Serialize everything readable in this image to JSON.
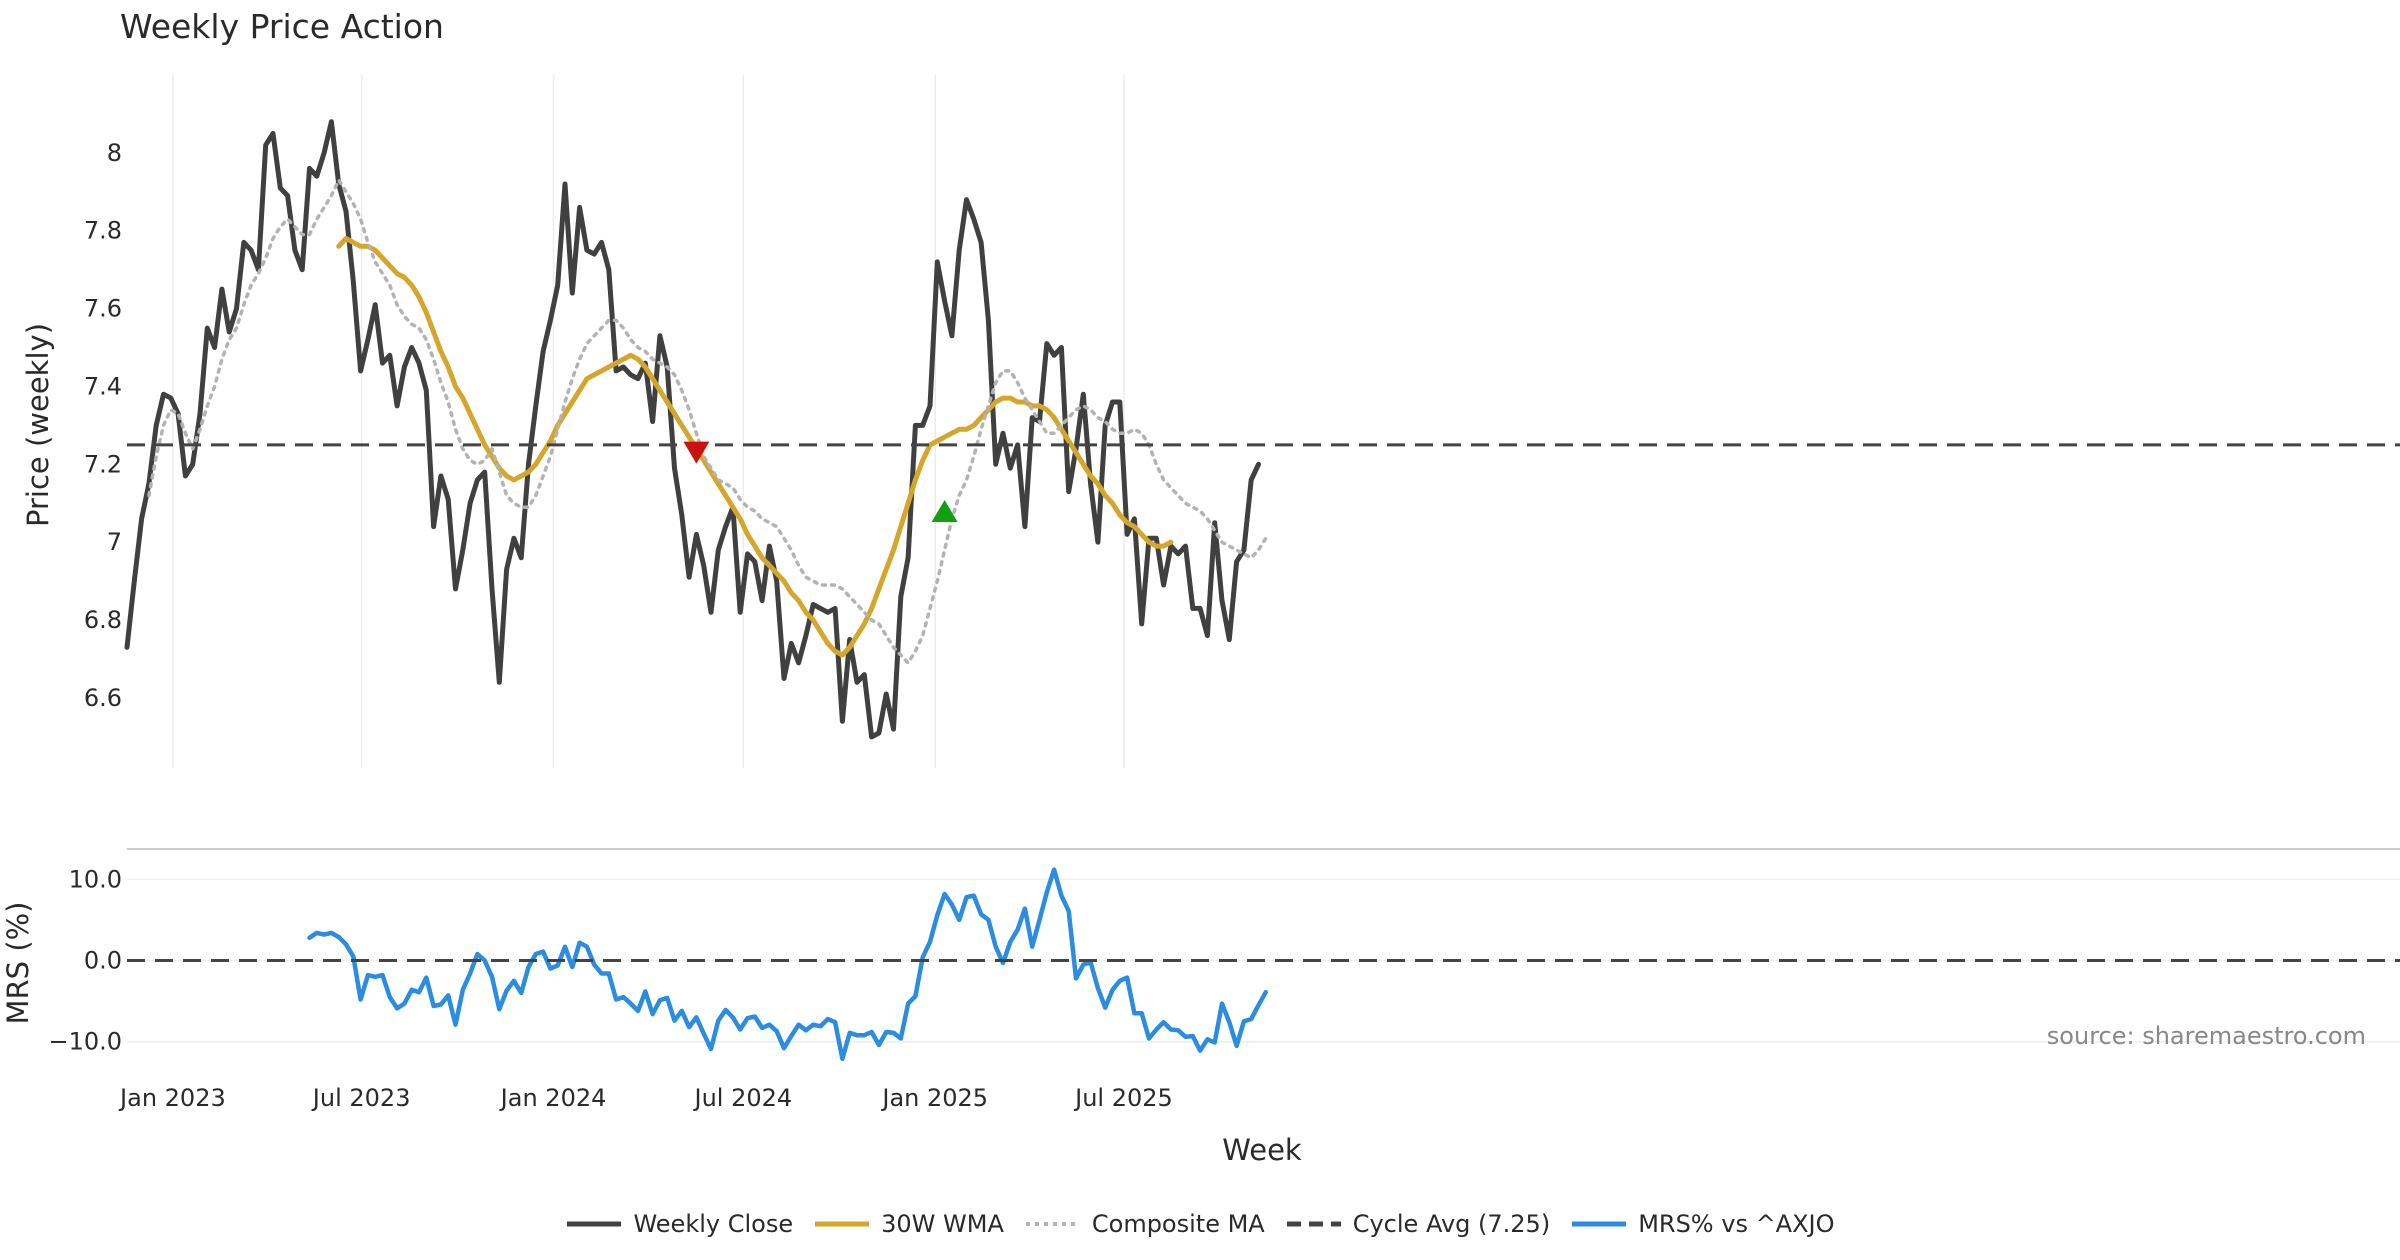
{
  "chart_data": [
    {
      "type": "line",
      "title": "Weekly Price Action",
      "xlabel": "",
      "ylabel": "Price (weekly)",
      "ylim": [
        6.42,
        8.2
      ],
      "yticks": [
        6.6,
        6.8,
        7,
        7.2,
        7.4,
        7.6,
        7.8,
        8
      ],
      "ytick_labels": [
        "6.6",
        "6.8",
        "7",
        "7.2",
        "7.4",
        "7.6",
        "7.8",
        "8"
      ],
      "grid": "vertical",
      "x_start": "2022-11-18",
      "x_interval": "weekly",
      "series": [
        {
          "name": "Weekly Close",
          "color": "#404040",
          "style": "solid",
          "start_index": 0,
          "values": [
            6.73,
            6.9,
            7.06,
            7.15,
            7.3,
            7.38,
            7.37,
            7.33,
            7.17,
            7.2,
            7.33,
            7.55,
            7.5,
            7.65,
            7.54,
            7.6,
            7.77,
            7.75,
            7.7,
            8.02,
            8.05,
            7.91,
            7.89,
            7.75,
            7.7,
            7.96,
            7.94,
            8.0,
            8.08,
            7.92,
            7.85,
            7.67,
            7.44,
            7.52,
            7.61,
            7.46,
            7.48,
            7.35,
            7.45,
            7.5,
            7.46,
            7.39,
            7.04,
            7.17,
            7.11,
            6.88,
            6.98,
            7.1,
            7.16,
            7.18,
            6.88,
            6.64,
            6.93,
            7.01,
            6.96,
            7.2,
            7.35,
            7.49,
            7.57,
            7.66,
            7.92,
            7.64,
            7.86,
            7.75,
            7.74,
            7.77,
            7.7,
            7.44,
            7.45,
            7.43,
            7.42,
            7.46,
            7.31,
            7.53,
            7.45,
            7.19,
            7.07,
            6.91,
            7.02,
            6.94,
            6.82,
            6.98,
            7.04,
            7.09,
            6.82,
            6.97,
            6.95,
            6.85,
            6.99,
            6.9,
            6.65,
            6.74,
            6.69,
            6.76,
            6.84,
            6.83,
            6.82,
            6.83,
            6.54,
            6.75,
            6.64,
            6.66,
            6.5,
            6.51,
            6.61,
            6.52,
            6.86,
            6.96,
            7.3,
            7.3,
            7.35,
            7.72,
            7.62,
            7.53,
            7.75,
            7.88,
            7.83,
            7.77,
            7.57,
            7.2,
            7.28,
            7.19,
            7.25,
            7.04,
            7.32,
            7.31,
            7.51,
            7.48,
            7.5,
            7.13,
            7.24,
            7.38,
            7.15,
            7.0,
            7.3,
            7.36,
            7.36,
            7.02,
            7.06,
            6.79,
            7.01,
            7.01,
            6.89,
            6.99,
            6.97,
            6.99,
            6.83,
            6.83,
            6.76,
            7.05,
            6.85,
            6.75,
            6.95,
            6.98,
            7.16,
            7.2
          ]
        },
        {
          "name": "30W WMA",
          "color": "#d4a72c",
          "style": "solid",
          "start_index": 29,
          "values": [
            7.76,
            7.78,
            7.77,
            7.76,
            7.76,
            7.75,
            7.73,
            7.71,
            7.69,
            7.68,
            7.66,
            7.63,
            7.59,
            7.54,
            7.49,
            7.45,
            7.4,
            7.37,
            7.33,
            7.29,
            7.25,
            7.22,
            7.19,
            7.17,
            7.16,
            7.17,
            7.18,
            7.2,
            7.23,
            7.26,
            7.3,
            7.33,
            7.36,
            7.39,
            7.42,
            7.43,
            7.44,
            7.45,
            7.46,
            7.47,
            7.48,
            7.47,
            7.45,
            7.42,
            7.39,
            7.36,
            7.33,
            7.3,
            7.27,
            7.24,
            7.21,
            7.18,
            7.15,
            7.12,
            7.09,
            7.06,
            7.02,
            6.99,
            6.96,
            6.94,
            6.92,
            6.9,
            6.87,
            6.85,
            6.82,
            6.8,
            6.77,
            6.74,
            6.72,
            6.71,
            6.73,
            6.76,
            6.79,
            6.83,
            6.88,
            6.93,
            6.98,
            7.04,
            7.1,
            7.16,
            7.21,
            7.25,
            7.26,
            7.27,
            7.28,
            7.29,
            7.29,
            7.3,
            7.32,
            7.34,
            7.36,
            7.37,
            7.37,
            7.36,
            7.36,
            7.35,
            7.35,
            7.34,
            7.32,
            7.29,
            7.26,
            7.23,
            7.2,
            7.17,
            7.15,
            7.12,
            7.1,
            7.07,
            7.05,
            7.04,
            7.02,
            7.0,
            6.99,
            6.99,
            7.0
          ]
        },
        {
          "name": "Composite MA",
          "color": "#b3b3b3",
          "style": "dotted",
          "start_index": 3,
          "values": [
            7.12,
            7.22,
            7.3,
            7.34,
            7.33,
            7.28,
            7.24,
            7.29,
            7.35,
            7.4,
            7.47,
            7.52,
            7.55,
            7.61,
            7.66,
            7.69,
            7.73,
            7.78,
            7.81,
            7.83,
            7.81,
            7.79,
            7.79,
            7.83,
            7.86,
            7.89,
            7.93,
            7.9,
            7.87,
            7.83,
            7.77,
            7.72,
            7.69,
            7.66,
            7.61,
            7.58,
            7.56,
            7.55,
            7.52,
            7.47,
            7.41,
            7.36,
            7.29,
            7.24,
            7.21,
            7.2,
            7.21,
            7.24,
            7.18,
            7.12,
            7.1,
            7.09,
            7.09,
            7.12,
            7.17,
            7.22,
            7.29,
            7.36,
            7.42,
            7.47,
            7.51,
            7.53,
            7.55,
            7.57,
            7.57,
            7.55,
            7.52,
            7.5,
            7.49,
            7.47,
            7.46,
            7.45,
            7.43,
            7.39,
            7.34,
            7.28,
            7.22,
            7.19,
            7.16,
            7.15,
            7.14,
            7.11,
            7.09,
            7.08,
            7.06,
            7.05,
            7.04,
            7.01,
            6.98,
            6.94,
            6.91,
            6.9,
            6.89,
            6.89,
            6.89,
            6.88,
            6.86,
            6.84,
            6.82,
            6.8,
            6.79,
            6.76,
            6.73,
            6.71,
            6.69,
            6.72,
            6.76,
            6.83,
            6.9,
            6.98,
            7.06,
            7.12,
            7.16,
            7.22,
            7.29,
            7.35,
            7.41,
            7.44,
            7.44,
            7.41,
            7.37,
            7.34,
            7.31,
            7.28,
            7.28,
            7.3,
            7.32,
            7.34,
            7.35,
            7.34,
            7.32,
            7.31,
            7.29,
            7.28,
            7.28,
            7.29,
            7.28,
            7.25,
            7.2,
            7.16,
            7.14,
            7.12,
            7.1,
            7.09,
            7.08,
            7.06,
            7.03,
            7.0,
            6.99,
            6.98,
            6.97,
            6.96,
            6.98,
            7.01
          ]
        },
        {
          "name": "Cycle Avg (7.25)",
          "color": "#444444",
          "style": "dashed",
          "constant": 7.25
        }
      ],
      "markers": [
        {
          "type": "sell",
          "shape": "triangle-down",
          "color": "#cc1111",
          "index": 78,
          "value": 7.23
        },
        {
          "type": "buy",
          "shape": "triangle-up",
          "color": "#11a011",
          "index": 112,
          "value": 7.08
        }
      ]
    },
    {
      "type": "line",
      "xlabel": "Week",
      "ylabel": "MRS (%)",
      "ylim": [
        -12.5,
        13
      ],
      "yticks": [
        -10,
        0,
        10
      ],
      "ytick_labels": [
        "−10.0",
        "0.0",
        "10.0"
      ],
      "xtick_labels": [
        "Jan 2023",
        "Jul 2023",
        "Jan 2024",
        "Jul 2024",
        "Jan 2025",
        "Jul 2025"
      ],
      "xtick_dates": [
        "2023-01-01",
        "2023-07-01",
        "2024-01-01",
        "2024-07-01",
        "2025-01-01",
        "2025-07-01"
      ],
      "annotation": "source: sharemaestro.com",
      "series": [
        {
          "name": "MRS% vs ^AXJO",
          "color": "#2b8ce0",
          "style": "solid",
          "start_index": 25,
          "values": [
            2.8,
            3.4,
            3.2,
            3.4,
            2.9,
            2.0,
            0.5,
            -4.8,
            -1.8,
            -2.0,
            -1.8,
            -4.5,
            -5.9,
            -5.3,
            -3.6,
            -3.9,
            -2.1,
            -5.6,
            -5.4,
            -4.3,
            -7.9,
            -3.6,
            -1.6,
            0.8,
            0.0,
            -2.0,
            -6.0,
            -3.7,
            -2.5,
            -4.0,
            -0.8,
            0.8,
            1.1,
            -1.0,
            -0.6,
            1.7,
            -0.8,
            2.2,
            1.7,
            -0.5,
            -1.6,
            -1.6,
            -4.8,
            -4.5,
            -5.3,
            -6.2,
            -3.8,
            -6.6,
            -4.9,
            -4.6,
            -7.4,
            -6.2,
            -8.2,
            -7.0,
            -9.0,
            -10.9,
            -7.4,
            -6.1,
            -7.0,
            -8.5,
            -7.1,
            -6.9,
            -8.3,
            -7.9,
            -8.7,
            -10.8,
            -9.3,
            -7.9,
            -8.6,
            -7.9,
            -8.1,
            -7.2,
            -7.6,
            -12.1,
            -8.9,
            -9.2,
            -9.2,
            -8.8,
            -10.4,
            -8.8,
            -8.9,
            -9.6,
            -5.3,
            -4.4,
            0.4,
            2.3,
            5.6,
            8.2,
            6.9,
            5.0,
            7.8,
            8.0,
            5.7,
            5.0,
            1.7,
            -0.3,
            2.3,
            3.8,
            6.4,
            1.7,
            5.0,
            8.4,
            11.2,
            8.0,
            6.1,
            -2.2,
            -0.5,
            -0.2,
            -3.4,
            -5.8,
            -3.6,
            -2.5,
            -2.1,
            -6.5,
            -6.5,
            -9.6,
            -8.5,
            -7.6,
            -8.5,
            -8.6,
            -9.4,
            -9.3,
            -11.1,
            -9.7,
            -10.1,
            -5.3,
            -7.6,
            -10.5,
            -7.5,
            -7.2,
            -5.5,
            -3.9
          ]
        },
        {
          "name": "",
          "color": "#444444",
          "style": "dashed",
          "constant": 0
        }
      ]
    }
  ],
  "legend": {
    "placement": "bottom-center",
    "items": [
      {
        "label": "Weekly Close",
        "color": "#404040",
        "style": "solid"
      },
      {
        "label": "30W WMA",
        "color": "#d4a72c",
        "style": "solid"
      },
      {
        "label": "Composite MA",
        "color": "#b3b3b3",
        "style": "dotted"
      },
      {
        "label": "Cycle Avg (7.25)",
        "color": "#444444",
        "style": "dashed"
      },
      {
        "label": "MRS% vs ^AXJO",
        "color": "#2b8ce0",
        "style": "solid"
      }
    ]
  }
}
